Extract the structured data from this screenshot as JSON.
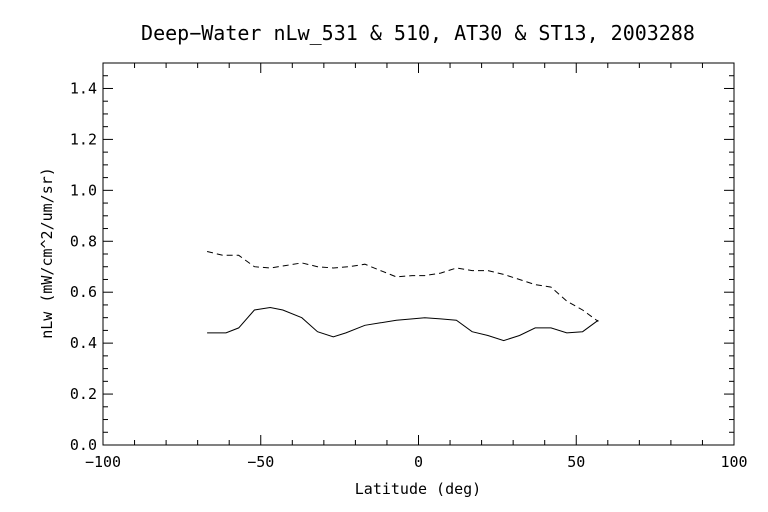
{
  "chart_data": {
    "type": "line",
    "title": "Deep−Water nLw_531 & 510, AT30 & ST13, 2003288",
    "xlabel": "Latitude (deg)",
    "ylabel": "nLw (mW/cm^2/um/sr)",
    "xlim": [
      -100,
      100
    ],
    "ylim": [
      0.0,
      1.5
    ],
    "x_ticks": [
      -100,
      -50,
      0,
      50,
      100
    ],
    "x_tick_labels": [
      "−100",
      "−50",
      "0",
      "50",
      "100"
    ],
    "y_ticks": [
      0.0,
      0.2,
      0.4,
      0.6,
      0.8,
      1.0,
      1.2,
      1.4
    ],
    "y_tick_labels": [
      "0.0",
      "0.2",
      "0.4",
      "0.6",
      "0.8",
      "1.0",
      "1.2",
      "1.4"
    ],
    "grid": false,
    "series": [
      {
        "style": "solid",
        "color": "#000000",
        "x": [
          -67,
          -61,
          -57,
          -52,
          -47,
          -43,
          -37,
          -32,
          -27,
          -23,
          -17,
          -12,
          -7,
          -2,
          2,
          7,
          12,
          17,
          22,
          27,
          32,
          37,
          42,
          47,
          52,
          57
        ],
        "y": [
          0.44,
          0.44,
          0.46,
          0.53,
          0.54,
          0.53,
          0.5,
          0.445,
          0.425,
          0.44,
          0.47,
          0.48,
          0.49,
          0.495,
          0.5,
          0.495,
          0.49,
          0.445,
          0.43,
          0.41,
          0.43,
          0.46,
          0.46,
          0.44,
          0.445,
          0.49
        ]
      },
      {
        "style": "dashed",
        "color": "#000000",
        "x": [
          -67,
          -62,
          -57,
          -52,
          -47,
          -42,
          -37,
          -32,
          -27,
          -22,
          -17,
          -12,
          -7,
          -2,
          2,
          7,
          12,
          17,
          22,
          27,
          32,
          37,
          42,
          47,
          52,
          57
        ],
        "y": [
          0.76,
          0.745,
          0.745,
          0.7,
          0.695,
          0.705,
          0.715,
          0.7,
          0.695,
          0.7,
          0.71,
          0.685,
          0.66,
          0.665,
          0.665,
          0.675,
          0.695,
          0.685,
          0.685,
          0.67,
          0.65,
          0.63,
          0.62,
          0.565,
          0.53,
          0.485
        ]
      }
    ]
  }
}
